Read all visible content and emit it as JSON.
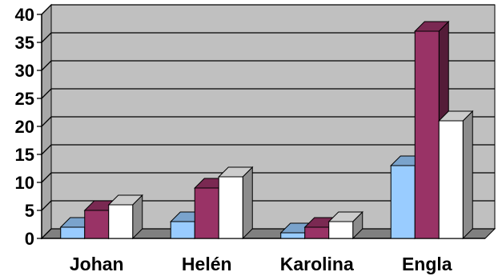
{
  "chart_data": {
    "type": "bar",
    "title": "",
    "xlabel": "",
    "ylabel": "",
    "categories": [
      "Johan",
      "Helén",
      "Karolina",
      "Engla"
    ],
    "series": [
      {
        "values": [
          2,
          3,
          1,
          13
        ],
        "color": "#99CCFF"
      },
      {
        "values": [
          5,
          9,
          2,
          37
        ],
        "color": "#993366"
      },
      {
        "values": [
          6,
          11,
          3,
          21
        ],
        "color": "#FFFFFF"
      }
    ],
    "ylim": [
      0,
      40
    ],
    "yticks": [
      0,
      5,
      10,
      15,
      20,
      25,
      30,
      35,
      40
    ],
    "grid": true,
    "legend": "none",
    "style": "3d",
    "wall_color": "#C0C0C0"
  }
}
